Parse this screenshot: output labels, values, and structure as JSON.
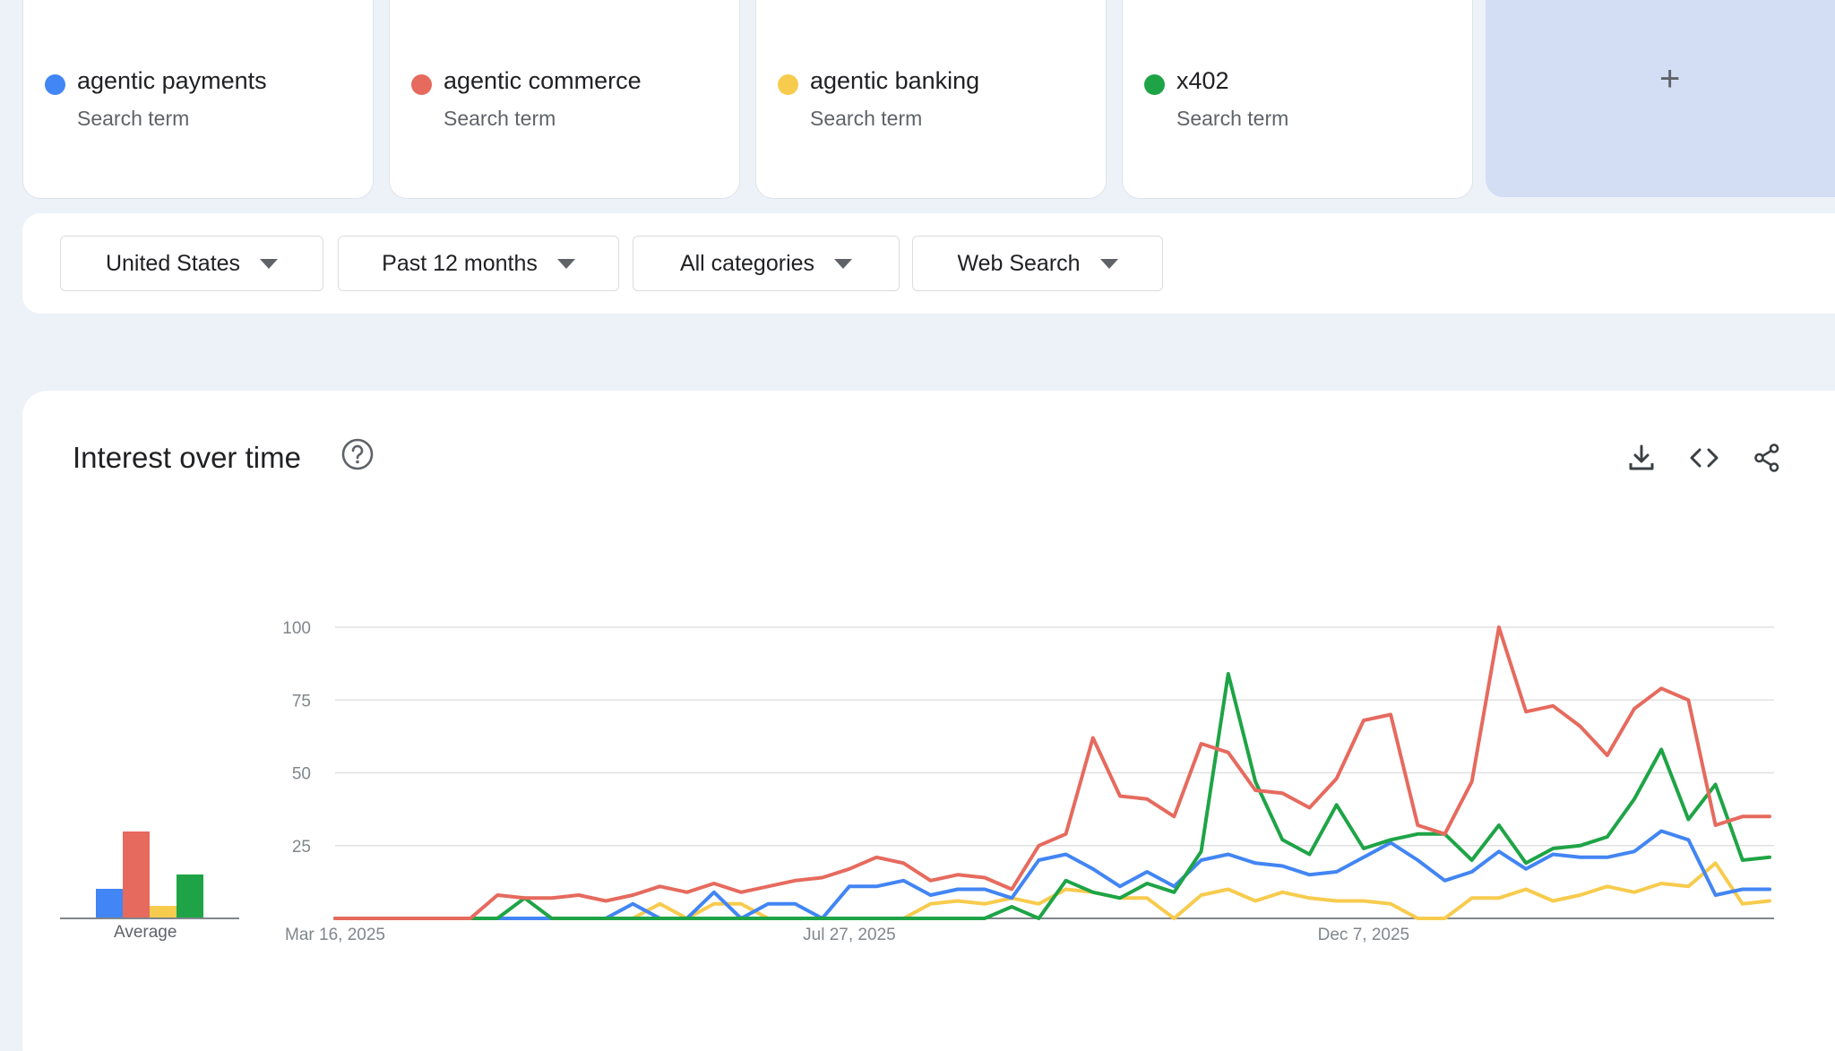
{
  "terms": [
    {
      "name": "agentic payments",
      "sub": "Search term",
      "color": "#4285f4"
    },
    {
      "name": "agentic commerce",
      "sub": "Search term",
      "color": "#e66a5e"
    },
    {
      "name": "agentic banking",
      "sub": "Search term",
      "color": "#f7cb4d"
    },
    {
      "name": "x402",
      "sub": "Search term",
      "color": "#1ea446"
    }
  ],
  "add_term": {
    "label": "+"
  },
  "filters": {
    "region": "United States",
    "time": "Past 12 months",
    "category": "All categories",
    "search_type": "Web Search"
  },
  "chart_panel": {
    "title": "Interest over time",
    "icons": [
      "help-icon",
      "download-icon",
      "embed-icon",
      "share-icon"
    ]
  },
  "chart_data": [
    {
      "type": "bar",
      "categories": [
        "agentic payments",
        "agentic commerce",
        "agentic banking",
        "x402"
      ],
      "values": [
        10,
        30,
        4,
        15
      ],
      "xlabel": "Average",
      "ylim": [
        0,
        100
      ]
    },
    {
      "type": "line",
      "x": [
        "Mar 16, 2025",
        "Mar 23, 2025",
        "Mar 30, 2025",
        "Apr 6, 2025",
        "Apr 13, 2025",
        "Apr 20, 2025",
        "Apr 27, 2025",
        "May 4, 2025",
        "May 11, 2025",
        "May 18, 2025",
        "May 25, 2025",
        "Jun 1, 2025",
        "Jun 8, 2025",
        "Jun 15, 2025",
        "Jun 22, 2025",
        "Jun 29, 2025",
        "Jul 6, 2025",
        "Jul 13, 2025",
        "Jul 20, 2025",
        "Jul 27, 2025",
        "Aug 3, 2025",
        "Aug 10, 2025",
        "Aug 17, 2025",
        "Aug 24, 2025",
        "Aug 31, 2025",
        "Sep 7, 2025",
        "Sep 14, 2025",
        "Sep 21, 2025",
        "Sep 28, 2025",
        "Oct 5, 2025",
        "Oct 12, 2025",
        "Oct 19, 2025",
        "Oct 26, 2025",
        "Nov 2, 2025",
        "Nov 9, 2025",
        "Nov 16, 2025",
        "Nov 23, 2025",
        "Nov 30, 2025",
        "Dec 7, 2025",
        "Dec 14, 2025",
        "Dec 21, 2025",
        "Dec 28, 2025",
        "Jan 4, 2026",
        "Jan 11, 2026",
        "Jan 18, 2026",
        "Jan 25, 2026",
        "Feb 1, 2026",
        "Feb 8, 2026",
        "Feb 15, 2026",
        "Feb 22, 2026",
        "Mar 1, 2026",
        "Mar 8, 2026",
        "Mar 15, 2026",
        "Mar 22, 2026"
      ],
      "xticks": [
        "Mar 16, 2025",
        "Jul 27, 2025",
        "Dec 7, 2025"
      ],
      "yticks": [
        25,
        50,
        75,
        100
      ],
      "ylim": [
        0,
        100
      ],
      "series": [
        {
          "name": "agentic payments",
          "color": "#4285f4",
          "values": [
            0,
            0,
            0,
            0,
            0,
            0,
            0,
            0,
            0,
            0,
            0,
            5,
            0,
            0,
            9,
            0,
            5,
            5,
            0,
            11,
            11,
            13,
            8,
            10,
            10,
            7,
            20,
            22,
            17,
            11,
            16,
            11,
            20,
            22,
            19,
            18,
            15,
            16,
            21,
            26,
            20,
            13,
            16,
            23,
            17,
            22,
            21,
            21,
            23,
            30,
            27,
            8,
            10,
            10
          ]
        },
        {
          "name": "agentic commerce",
          "color": "#e66a5e",
          "values": [
            0,
            0,
            0,
            0,
            0,
            0,
            8,
            7,
            7,
            8,
            6,
            8,
            11,
            9,
            12,
            9,
            11,
            13,
            14,
            17,
            21,
            19,
            13,
            15,
            14,
            10,
            25,
            29,
            62,
            42,
            41,
            35,
            60,
            57,
            44,
            43,
            38,
            48,
            68,
            70,
            32,
            29,
            47,
            100,
            71,
            73,
            66,
            56,
            72,
            79,
            75,
            32,
            35,
            35
          ]
        },
        {
          "name": "agentic banking",
          "color": "#f7cb4d",
          "values": [
            0,
            0,
            0,
            0,
            0,
            0,
            0,
            0,
            0,
            0,
            0,
            0,
            5,
            0,
            5,
            5,
            0,
            0,
            0,
            0,
            0,
            0,
            5,
            6,
            5,
            7,
            5,
            10,
            9,
            7,
            7,
            0,
            8,
            10,
            6,
            9,
            7,
            6,
            6,
            5,
            0,
            0,
            7,
            7,
            10,
            6,
            8,
            11,
            9,
            12,
            11,
            19,
            5,
            6
          ]
        },
        {
          "name": "x402",
          "color": "#1ea446",
          "values": [
            0,
            0,
            0,
            0,
            0,
            0,
            0,
            7,
            0,
            0,
            0,
            0,
            0,
            0,
            0,
            0,
            0,
            0,
            0,
            0,
            0,
            0,
            0,
            0,
            0,
            4,
            0,
            13,
            9,
            7,
            12,
            9,
            23,
            84,
            47,
            27,
            22,
            39,
            24,
            27,
            29,
            29,
            20,
            32,
            19,
            24,
            25,
            28,
            41,
            58,
            34,
            46,
            20,
            21
          ]
        }
      ]
    }
  ]
}
